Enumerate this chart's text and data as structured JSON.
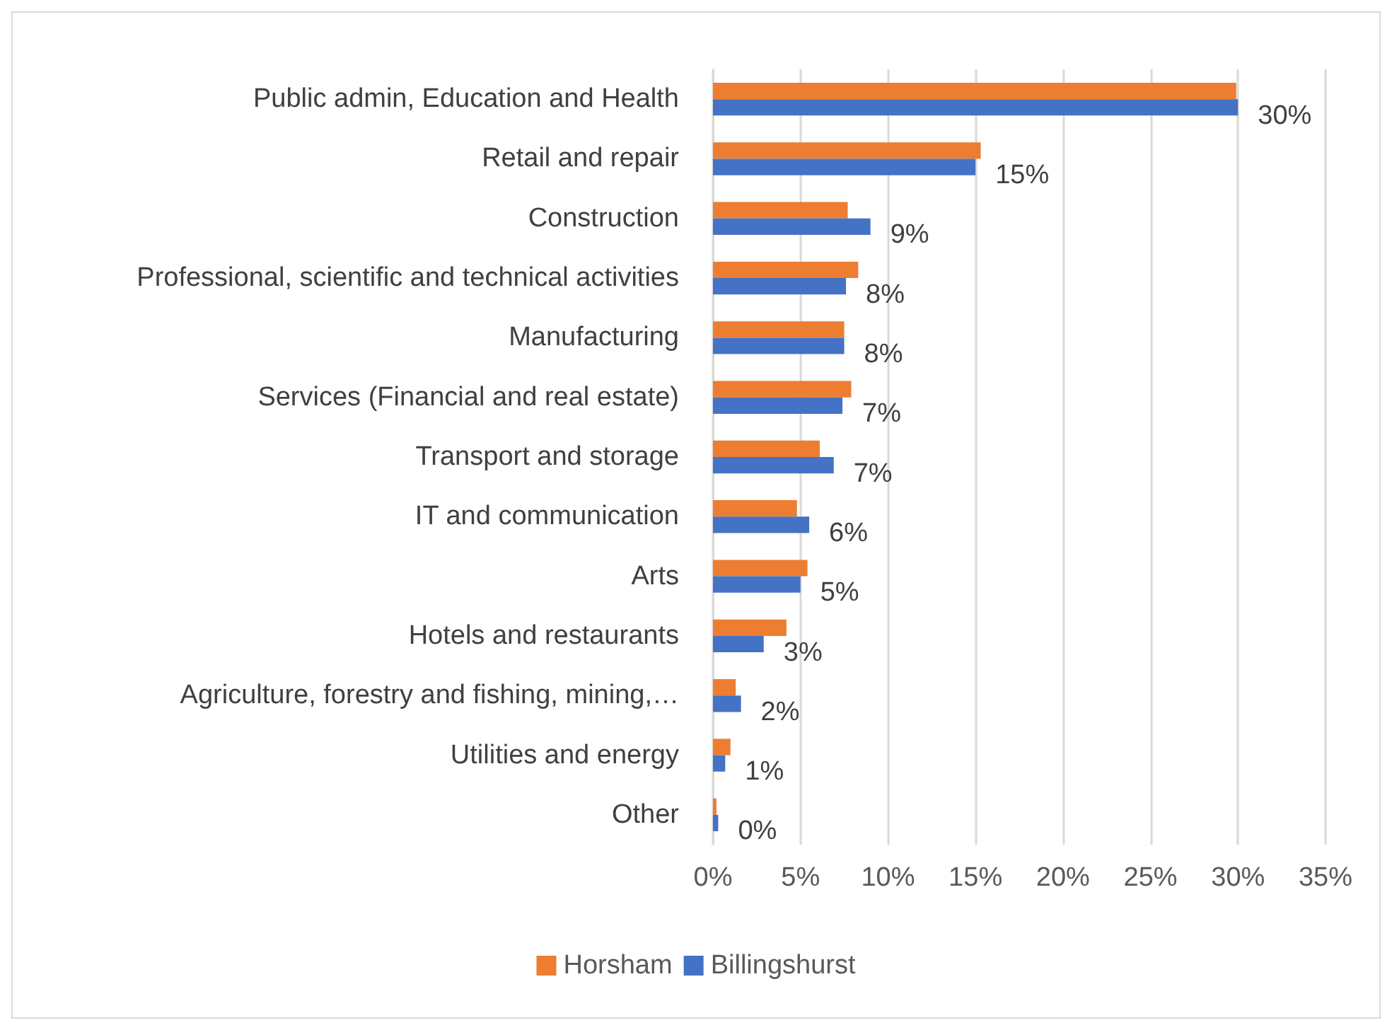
{
  "chart_data": {
    "type": "bar",
    "orientation": "horizontal",
    "categories": [
      "Public admin, Education and Health",
      "Retail and repair",
      "Construction",
      "Professional, scientific and technical activities",
      "Manufacturing",
      "Services (Financial and real estate)",
      "Transport and storage",
      "IT and communication",
      "Arts",
      "Hotels and restaurants",
      "Agriculture, forestry and fishing, mining,…",
      "Utilities and energy",
      "Other"
    ],
    "series": [
      {
        "name": "Horsham",
        "color": "#ed7d31",
        "values": [
          29.9,
          15.3,
          7.7,
          8.3,
          7.5,
          7.9,
          6.1,
          4.8,
          5.4,
          4.2,
          1.3,
          1.0,
          0.2
        ]
      },
      {
        "name": "Billingshurst",
        "color": "#4472c4",
        "values": [
          30,
          15,
          9.0,
          7.6,
          7.5,
          7.4,
          6.9,
          5.5,
          5.0,
          2.9,
          1.6,
          0.7,
          0.3
        ],
        "value_labels": [
          "30%",
          "15%",
          "9%",
          "8%",
          "8%",
          "7%",
          "7%",
          "6%",
          "5%",
          "3%",
          "2%",
          "1%",
          "0%"
        ]
      }
    ],
    "xlim": [
      0,
      35
    ],
    "xticks": [
      {
        "value": 0,
        "label": "0%"
      },
      {
        "value": 5,
        "label": "5%"
      },
      {
        "value": 10,
        "label": "10%"
      },
      {
        "value": 15,
        "label": "15%"
      },
      {
        "value": 20,
        "label": "20%"
      },
      {
        "value": 25,
        "label": "25%"
      },
      {
        "value": 30,
        "label": "30%"
      },
      {
        "value": 35,
        "label": "35%"
      }
    ],
    "grid": "x",
    "legend": "bottom"
  }
}
